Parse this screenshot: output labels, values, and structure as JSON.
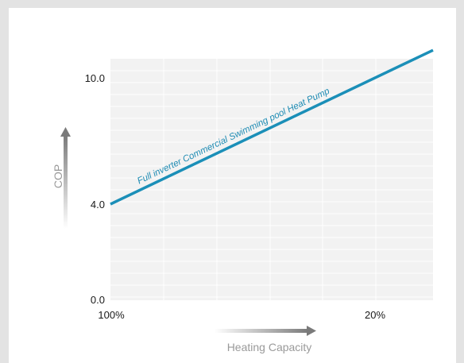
{
  "chart_data": {
    "type": "line",
    "xlabel": "Heating Capacity",
    "ylabel": "COP",
    "x_ticks": [
      "100%",
      "20%"
    ],
    "y_ticks": [
      "10.0",
      "4.0",
      "0.0"
    ],
    "x_direction": "capacity decreasing left to right",
    "ylim": [
      0,
      10.6
    ],
    "series": [
      {
        "name": "Full inverter Commercial Swimming pool Heat Pump",
        "color": "#1b8fb8",
        "points": [
          {
            "x": "100%",
            "y": 4.0
          },
          {
            "x": "20%",
            "y": 10.0
          }
        ]
      }
    ],
    "grid": true,
    "plot_background": "#f2f2f2",
    "axis_arrow_color": "#888888"
  }
}
